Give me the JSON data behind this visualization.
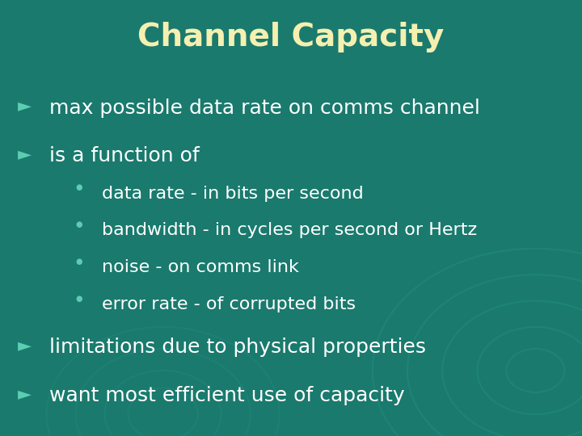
{
  "title": "Channel Capacity",
  "title_color": "#f5f0b0",
  "title_fontsize": 28,
  "background_color": "#1a7a6e",
  "bullet_color": "#5dccb0",
  "text_color": "#ffffff",
  "arrow_color": "#5dccb0",
  "main_bullets": [
    "max possible data rate on comms channel",
    "is a function of"
  ],
  "sub_bullets": [
    "data rate - in bits per second",
    "bandwidth - in cycles per second or Hertz",
    "noise - on comms link",
    "error rate - of corrupted bits"
  ],
  "bottom_bullets": [
    "limitations due to physical properties",
    "want most efficient use of capacity"
  ],
  "main_fontsize": 18,
  "sub_fontsize": 16,
  "circle_color": "#2a9a8e",
  "figwidth": 7.2,
  "figheight": 5.4,
  "dpi": 100
}
